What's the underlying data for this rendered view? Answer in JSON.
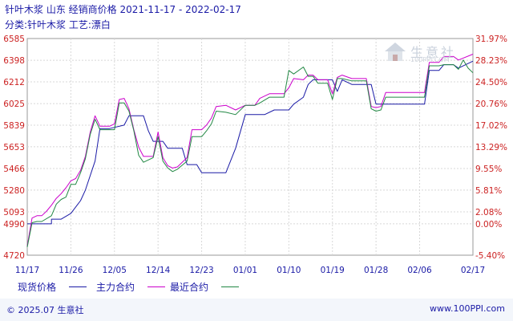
{
  "header": {
    "title": "针叶木浆 山东 经销商价格 2021-11-17 - 2022-02-17",
    "subtitle": "分类:针叶木浆 工艺:漂白"
  },
  "watermark": {
    "text": "生意社",
    "url": "100PPI.COM"
  },
  "footer": {
    "copyright": "© 2025.07 生意社",
    "site": "www.100PPI.com"
  },
  "colors": {
    "spot": "#1a1aa6",
    "main": "#cc00cc",
    "recent": "#228844",
    "axis_text": "#cc2222",
    "grid": "#d8d8d8"
  },
  "chart_data": {
    "type": "line",
    "title": "针叶木浆 山东 经销商价格 2021-11-17 - 2022-02-17",
    "x_range": [
      0,
      92
    ],
    "x_ticks": [
      {
        "x": 0,
        "label": "11/17"
      },
      {
        "x": 9,
        "label": "11/26"
      },
      {
        "x": 18,
        "label": "12/05"
      },
      {
        "x": 27,
        "label": "12/14"
      },
      {
        "x": 36,
        "label": "12/23"
      },
      {
        "x": 45,
        "label": "01/01"
      },
      {
        "x": 54,
        "label": "01/10"
      },
      {
        "x": 63,
        "label": "01/19"
      },
      {
        "x": 72,
        "label": "01/28"
      },
      {
        "x": 81,
        "label": "02/06"
      },
      {
        "x": 92,
        "label": "02/17"
      }
    ],
    "y_left_ticks": [
      "4720",
      "4990",
      "5093",
      "5280",
      "5466",
      "5653",
      "5839",
      "6025",
      "6212",
      "6398",
      "6585"
    ],
    "y_right_ticks": [
      "-5.40%",
      "0.00%",
      "2.08%",
      "5.81%",
      "9.55%",
      "13.29%",
      "17.02%",
      "20.76%",
      "24.50%",
      "28.23%",
      "31.97%"
    ],
    "ylim": [
      4720,
      6585
    ],
    "grid": true,
    "legend_position": "bottom",
    "series": [
      {
        "name": "现货价格",
        "color": "#1a1aa6",
        "points": [
          [
            0,
            4990
          ],
          [
            1,
            4990
          ],
          [
            5,
            4990
          ],
          [
            5,
            5030
          ],
          [
            7,
            5030
          ],
          [
            9,
            5080
          ],
          [
            11,
            5190
          ],
          [
            12,
            5280
          ],
          [
            14,
            5530
          ],
          [
            15,
            5810
          ],
          [
            17,
            5810
          ],
          [
            20,
            5840
          ],
          [
            21,
            5920
          ],
          [
            24,
            5920
          ],
          [
            25,
            5790
          ],
          [
            26,
            5700
          ],
          [
            28,
            5700
          ],
          [
            29,
            5640
          ],
          [
            32,
            5640
          ],
          [
            33,
            5500
          ],
          [
            35,
            5500
          ],
          [
            36,
            5430
          ],
          [
            41,
            5430
          ],
          [
            43,
            5640
          ],
          [
            45,
            5930
          ],
          [
            49,
            5930
          ],
          [
            51,
            5970
          ],
          [
            54,
            5970
          ],
          [
            55,
            6020
          ],
          [
            57,
            6080
          ],
          [
            58,
            6190
          ],
          [
            59,
            6230
          ],
          [
            63,
            6230
          ],
          [
            64,
            6130
          ],
          [
            65,
            6230
          ],
          [
            66,
            6210
          ],
          [
            67,
            6190
          ],
          [
            71,
            6190
          ],
          [
            72,
            6020
          ],
          [
            73,
            6020
          ],
          [
            82,
            6020
          ],
          [
            83,
            6310
          ],
          [
            85,
            6310
          ],
          [
            86,
            6360
          ],
          [
            88,
            6360
          ],
          [
            89,
            6330
          ],
          [
            92,
            6390
          ]
        ]
      },
      {
        "name": "主力合约",
        "color": "#cc00cc",
        "points": [
          [
            0,
            4800
          ],
          [
            1,
            5040
          ],
          [
            2,
            5060
          ],
          [
            3,
            5060
          ],
          [
            4,
            5100
          ],
          [
            5,
            5150
          ],
          [
            6,
            5210
          ],
          [
            7,
            5250
          ],
          [
            8,
            5300
          ],
          [
            9,
            5360
          ],
          [
            10,
            5380
          ],
          [
            11,
            5450
          ],
          [
            12,
            5570
          ],
          [
            13,
            5780
          ],
          [
            14,
            5920
          ],
          [
            15,
            5830
          ],
          [
            17,
            5830
          ],
          [
            18,
            5850
          ],
          [
            19,
            6060
          ],
          [
            20,
            6070
          ],
          [
            21,
            5980
          ],
          [
            22,
            5800
          ],
          [
            23,
            5650
          ],
          [
            24,
            5570
          ],
          [
            26,
            5570
          ],
          [
            27,
            5780
          ],
          [
            28,
            5560
          ],
          [
            29,
            5490
          ],
          [
            30,
            5470
          ],
          [
            31,
            5480
          ],
          [
            33,
            5560
          ],
          [
            34,
            5800
          ],
          [
            36,
            5800
          ],
          [
            37,
            5840
          ],
          [
            38,
            5900
          ],
          [
            39,
            6000
          ],
          [
            41,
            6010
          ],
          [
            43,
            5970
          ],
          [
            45,
            6010
          ],
          [
            47,
            6010
          ],
          [
            48,
            6070
          ],
          [
            50,
            6110
          ],
          [
            53,
            6110
          ],
          [
            54,
            6160
          ],
          [
            55,
            6240
          ],
          [
            57,
            6230
          ],
          [
            58,
            6270
          ],
          [
            59,
            6270
          ],
          [
            60,
            6230
          ],
          [
            62,
            6230
          ],
          [
            63,
            6110
          ],
          [
            64,
            6250
          ],
          [
            65,
            6270
          ],
          [
            67,
            6240
          ],
          [
            70,
            6240
          ],
          [
            71,
            6000
          ],
          [
            72,
            5990
          ],
          [
            73,
            6000
          ],
          [
            74,
            6120
          ],
          [
            82,
            6120
          ],
          [
            83,
            6380
          ],
          [
            85,
            6380
          ],
          [
            86,
            6430
          ],
          [
            88,
            6430
          ],
          [
            89,
            6400
          ],
          [
            92,
            6450
          ]
        ]
      },
      {
        "name": "最近合约",
        "color": "#228844",
        "points": [
          [
            0,
            4790
          ],
          [
            1,
            5000
          ],
          [
            2,
            5010
          ],
          [
            3,
            5010
          ],
          [
            5,
            5060
          ],
          [
            6,
            5160
          ],
          [
            7,
            5200
          ],
          [
            8,
            5220
          ],
          [
            9,
            5330
          ],
          [
            10,
            5330
          ],
          [
            11,
            5430
          ],
          [
            12,
            5550
          ],
          [
            13,
            5760
          ],
          [
            14,
            5890
          ],
          [
            15,
            5800
          ],
          [
            17,
            5800
          ],
          [
            18,
            5800
          ],
          [
            19,
            6030
          ],
          [
            20,
            6030
          ],
          [
            21,
            5960
          ],
          [
            22,
            5790
          ],
          [
            23,
            5580
          ],
          [
            24,
            5520
          ],
          [
            26,
            5560
          ],
          [
            27,
            5740
          ],
          [
            28,
            5530
          ],
          [
            29,
            5470
          ],
          [
            30,
            5440
          ],
          [
            31,
            5460
          ],
          [
            33,
            5530
          ],
          [
            34,
            5740
          ],
          [
            36,
            5740
          ],
          [
            37,
            5790
          ],
          [
            38,
            5850
          ],
          [
            39,
            5960
          ],
          [
            41,
            5950
          ],
          [
            43,
            5930
          ],
          [
            45,
            6010
          ],
          [
            47,
            6010
          ],
          [
            48,
            6030
          ],
          [
            50,
            6080
          ],
          [
            53,
            6080
          ],
          [
            54,
            6310
          ],
          [
            55,
            6280
          ],
          [
            57,
            6340
          ],
          [
            58,
            6260
          ],
          [
            59,
            6260
          ],
          [
            60,
            6200
          ],
          [
            62,
            6200
          ],
          [
            63,
            6060
          ],
          [
            64,
            6240
          ],
          [
            65,
            6240
          ],
          [
            67,
            6220
          ],
          [
            70,
            6220
          ],
          [
            71,
            5980
          ],
          [
            72,
            5960
          ],
          [
            73,
            5970
          ],
          [
            74,
            6080
          ],
          [
            82,
            6080
          ],
          [
            83,
            6350
          ],
          [
            85,
            6350
          ],
          [
            86,
            6360
          ],
          [
            88,
            6360
          ],
          [
            89,
            6320
          ],
          [
            90,
            6400
          ],
          [
            91,
            6330
          ],
          [
            92,
            6290
          ]
        ]
      }
    ]
  }
}
